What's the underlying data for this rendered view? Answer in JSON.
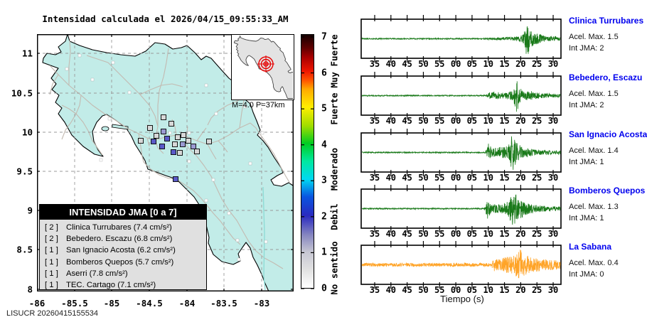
{
  "title": "Intensidad calculada el 2026/04/15_09:55:33_AM",
  "footer": "LISUCR 20260415155534",
  "map": {
    "x_axis": [
      "-86",
      "-85.5",
      "-85",
      "-84.5",
      "-84",
      "-83.5",
      "-83"
    ],
    "y_axis": [
      "11",
      "10.5",
      "10",
      "9.5",
      "9",
      "8.5",
      "8"
    ],
    "inset": {
      "label": "M=4.0 P=37km"
    },
    "legend": {
      "title": "INTENSIDAD JMA [0 a 7]",
      "entries": [
        {
          "jma": "[ 2 ]",
          "station": "Clinica Turrubares (7.4 cm/s²)"
        },
        {
          "jma": "[ 2 ]",
          "station": "Bebedero. Escazu (6.8 cm/s²)"
        },
        {
          "jma": "[ 1 ]",
          "station": "San Ignacio Acosta (6.2 cm/s²)"
        },
        {
          "jma": "[ 1 ]",
          "station": "Bomberos Quepos (5.7 cm/s²)"
        },
        {
          "jma": "[ 1 ]",
          "station": "Aserri (7.8 cm/s²)"
        },
        {
          "jma": "[ 1 ]",
          "station": "TEC. Cartago (7.1 cm/s²)"
        }
      ]
    },
    "markers": {
      "high": [
        [
          164,
          151
        ],
        [
          183,
          147
        ],
        [
          176,
          158
        ],
        [
          192,
          166
        ],
        [
          195,
          204
        ]
      ],
      "mid": [
        [
          178,
          137
        ],
        [
          205,
          155
        ],
        [
          220,
          158
        ]
      ],
      "low": [
        [
          178,
          117
        ],
        [
          189,
          126
        ],
        [
          159,
          132
        ],
        [
          168,
          143
        ],
        [
          146,
          150
        ],
        [
          198,
          145
        ],
        [
          206,
          142
        ],
        [
          213,
          150
        ],
        [
          225,
          165
        ],
        [
          242,
          151
        ],
        [
          201,
          167
        ],
        [
          194,
          155
        ]
      ],
      "none": [
        [
          42,
          49
        ],
        [
          107,
          40
        ],
        [
          78,
          64
        ],
        [
          130,
          82
        ],
        [
          102,
          119
        ],
        [
          90,
          177
        ],
        [
          214,
          179
        ],
        [
          248,
          205
        ],
        [
          238,
          234
        ],
        [
          270,
          252
        ],
        [
          282,
          290
        ],
        [
          322,
          292
        ],
        [
          284,
          317
        ],
        [
          252,
          112
        ],
        [
          288,
          80
        ],
        [
          317,
          139
        ],
        [
          300,
          182
        ],
        [
          60,
          30
        ],
        [
          187,
          139
        ],
        [
          214,
          139
        ],
        [
          156,
          130
        ],
        [
          238,
          72
        ],
        [
          293,
          102
        ]
      ]
    },
    "colors": {
      "land_fill": "#c2ece8",
      "road": "#c3bab1",
      "marker_low": "#d8d8d8",
      "marker_mid": "#9a9ad2",
      "marker_high": "#5a5ac8",
      "marker_none": "#ffffff",
      "epicenter_red": "#e60000"
    }
  },
  "colorbar": {
    "numbers": [
      "7",
      "6",
      "5",
      "4",
      "3",
      "2",
      "1",
      "0"
    ],
    "categories": [
      {
        "text": "Muy Fuerte",
        "y": 86
      },
      {
        "text": "Fuerte",
        "y": 153
      },
      {
        "text": "Moderado",
        "y": 238
      },
      {
        "text": "Debil",
        "y": 305
      },
      {
        "text": "No sentido",
        "y": 377
      }
    ]
  },
  "chart_data": [
    {
      "type": "scatter",
      "name": "intensity-map",
      "title": "Intensidad calculada el 2026/04/15_09:55:33_AM",
      "xlim": [
        -86,
        -82.57
      ],
      "ylim": [
        8,
        11.25
      ],
      "magnitude": "M=4.0",
      "depth": "P=37km",
      "stations": [
        {
          "name": "Clinica Turrubares",
          "int_jma": 2,
          "accel": "7.4 cm/s²"
        },
        {
          "name": "Bebedero. Escazu",
          "int_jma": 2,
          "accel": "6.8 cm/s²"
        },
        {
          "name": "San Ignacio Acosta",
          "int_jma": 1,
          "accel": "6.2 cm/s²"
        },
        {
          "name": "Bomberos Quepos",
          "int_jma": 1,
          "accel": "5.7 cm/s²"
        },
        {
          "name": "Aserri",
          "int_jma": 1,
          "accel": "7.8 cm/s²"
        },
        {
          "name": "TEC. Cartago",
          "int_jma": 1,
          "accel": "7.1 cm/s²"
        }
      ],
      "intensity_scale": [
        "No sentido",
        "Debil",
        "Moderado",
        "Fuerte",
        "Muy Fuerte"
      ],
      "scale_range": [
        0,
        7
      ]
    },
    {
      "type": "line",
      "station": "Clinica Turrubares",
      "accel_max": "Acel. Max. 1.5",
      "int_jma": "Int JMA: 2",
      "color": "#1a7a1a",
      "seed": 3,
      "x_ticks": [
        "35",
        "40",
        "45",
        "50",
        "55",
        "00",
        "05",
        "10",
        "15",
        "20",
        "25",
        "30"
      ],
      "envelope": [
        [
          0,
          0.8
        ],
        [
          0.6,
          0.8
        ],
        [
          0.64,
          1.6
        ],
        [
          0.7,
          2.0
        ],
        [
          0.75,
          2.6
        ],
        [
          0.79,
          3.5
        ],
        [
          0.81,
          7
        ],
        [
          0.825,
          27
        ],
        [
          0.845,
          15
        ],
        [
          0.865,
          9
        ],
        [
          0.885,
          7
        ],
        [
          0.91,
          5
        ],
        [
          0.95,
          3.5
        ],
        [
          1,
          3
        ]
      ]
    },
    {
      "type": "line",
      "station": "Bebedero, Escazu",
      "accel_max": "Acel. Max. 1.5",
      "int_jma": "Int JMA: 2",
      "color": "#1a7a1a",
      "seed": 7,
      "x_ticks": [
        "35",
        "40",
        "45",
        "50",
        "55",
        "00",
        "05",
        "10",
        "15",
        "20",
        "25",
        "30"
      ],
      "envelope": [
        [
          0,
          0.8
        ],
        [
          0.625,
          0.8
        ],
        [
          0.64,
          4.5
        ],
        [
          0.67,
          5.5
        ],
        [
          0.7,
          4
        ],
        [
          0.73,
          5
        ],
        [
          0.76,
          7
        ],
        [
          0.775,
          27
        ],
        [
          0.79,
          11
        ],
        [
          0.815,
          6
        ],
        [
          0.85,
          7
        ],
        [
          0.88,
          4
        ],
        [
          0.93,
          3
        ],
        [
          1,
          2.5
        ]
      ]
    },
    {
      "type": "line",
      "station": "San Ignacio Acosta",
      "accel_max": "Acel. Max. 1.4",
      "int_jma": "Int JMA: 1",
      "color": "#1a7a1a",
      "seed": 13,
      "x_ticks": [
        "35",
        "40",
        "45",
        "50",
        "55",
        "00",
        "05",
        "10",
        "15",
        "20",
        "25",
        "30"
      ],
      "envelope": [
        [
          0,
          0.8
        ],
        [
          0.62,
          0.8
        ],
        [
          0.635,
          13
        ],
        [
          0.655,
          6
        ],
        [
          0.685,
          7.5
        ],
        [
          0.715,
          8
        ],
        [
          0.74,
          12
        ],
        [
          0.755,
          27
        ],
        [
          0.775,
          16
        ],
        [
          0.8,
          8
        ],
        [
          0.83,
          6
        ],
        [
          0.87,
          4
        ],
        [
          0.92,
          3
        ],
        [
          1,
          2.5
        ]
      ]
    },
    {
      "type": "line",
      "station": "Bomberos Quepos",
      "accel_max": "Acel. Max. 1.3",
      "int_jma": "Int JMA: 1",
      "color": "#1a7a1a",
      "seed": 21,
      "x_ticks": [
        "35",
        "40",
        "45",
        "50",
        "55",
        "00",
        "05",
        "10",
        "15",
        "20",
        "25",
        "30"
      ],
      "envelope": [
        [
          0,
          0.9
        ],
        [
          0.615,
          0.9
        ],
        [
          0.63,
          17
        ],
        [
          0.65,
          6
        ],
        [
          0.68,
          6
        ],
        [
          0.71,
          7
        ],
        [
          0.735,
          11
        ],
        [
          0.75,
          21
        ],
        [
          0.765,
          27
        ],
        [
          0.78,
          14
        ],
        [
          0.8,
          16
        ],
        [
          0.82,
          9
        ],
        [
          0.845,
          6.5
        ],
        [
          0.88,
          5
        ],
        [
          0.93,
          3.5
        ],
        [
          1,
          3
        ]
      ]
    },
    {
      "type": "line",
      "station": "La Sabana",
      "accel_max": "Acel. Max. 0.4",
      "int_jma": "Int JMA: 0",
      "color": "#ffa428",
      "seed": 42,
      "xlabel": "Tiempo (s)",
      "x_ticks": [
        "35",
        "40",
        "45",
        "50",
        "55",
        "00",
        "05",
        "10",
        "15",
        "20",
        "25",
        "30"
      ],
      "envelope": [
        [
          0,
          2.5
        ],
        [
          0.65,
          2.5
        ],
        [
          0.665,
          9
        ],
        [
          0.695,
          7.5
        ],
        [
          0.72,
          11
        ],
        [
          0.745,
          13
        ],
        [
          0.77,
          16
        ],
        [
          0.795,
          23
        ],
        [
          0.815,
          15
        ],
        [
          0.84,
          12
        ],
        [
          0.87,
          10
        ],
        [
          0.91,
          8
        ],
        [
          0.96,
          7
        ],
        [
          1,
          6
        ]
      ]
    }
  ]
}
